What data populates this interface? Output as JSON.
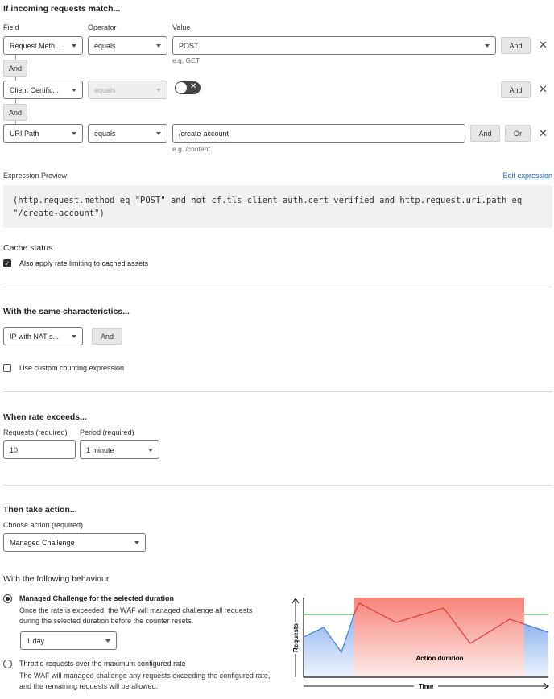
{
  "match": {
    "title": "If incoming requests match...",
    "col_field": "Field",
    "col_operator": "Operator",
    "col_value": "Value",
    "rows": [
      {
        "field": "Request Meth...",
        "operator": "equals",
        "value": "POST",
        "hint": "e.g. GET",
        "and": "And"
      },
      {
        "field": "Client Certific...",
        "operator": "equals",
        "toggle": false,
        "and": "And"
      },
      {
        "field": "URI Path",
        "operator": "equals",
        "value": "/create-account",
        "hint": "e.g. /content",
        "and": "And",
        "or": "Or"
      }
    ],
    "connector": "And"
  },
  "expression": {
    "label": "Expression Preview",
    "edit": "Edit expression",
    "code": "(http.request.method eq \"POST\" and not cf.tls_client_auth.cert_verified and http.request.uri.path eq \"/create-account\")"
  },
  "cache": {
    "title": "Cache status",
    "checkbox": "Also apply rate limiting to cached assets",
    "checked": true
  },
  "characteristics": {
    "title": "With the same characteristics...",
    "select": "IP with NAT s...",
    "and": "And",
    "custom": "Use custom counting expression",
    "custom_checked": false
  },
  "rate": {
    "title": "When rate exceeds...",
    "requests_label": "Requests (required)",
    "requests": "10",
    "period_label": "Period (required)",
    "period": "1 minute"
  },
  "action": {
    "title": "Then take action...",
    "choose_label": "Choose action (required)",
    "choice": "Managed Challenge"
  },
  "behaviour": {
    "title": "With the following behaviour",
    "opt1_title": "Managed Challenge for the selected duration",
    "opt1_desc": "Once the rate is exceeded, the WAF will managed challenge all requests during the selected duration before the counter resets.",
    "duration": "1 day",
    "opt2_title": "Throttle requests over the maximum configured rate",
    "opt2_desc": "The WAF will managed challenge any requests exceeding the configured rate, and the remaining requests will be allowed.",
    "selected": 1
  },
  "illustration": {
    "y_label": "Requests",
    "x_label": "Time",
    "band_label": "Action duration",
    "colors": {
      "band": "#f8837a",
      "over": "#e53935",
      "under": "#3b7ddd",
      "threshold": "#4caf50"
    }
  }
}
